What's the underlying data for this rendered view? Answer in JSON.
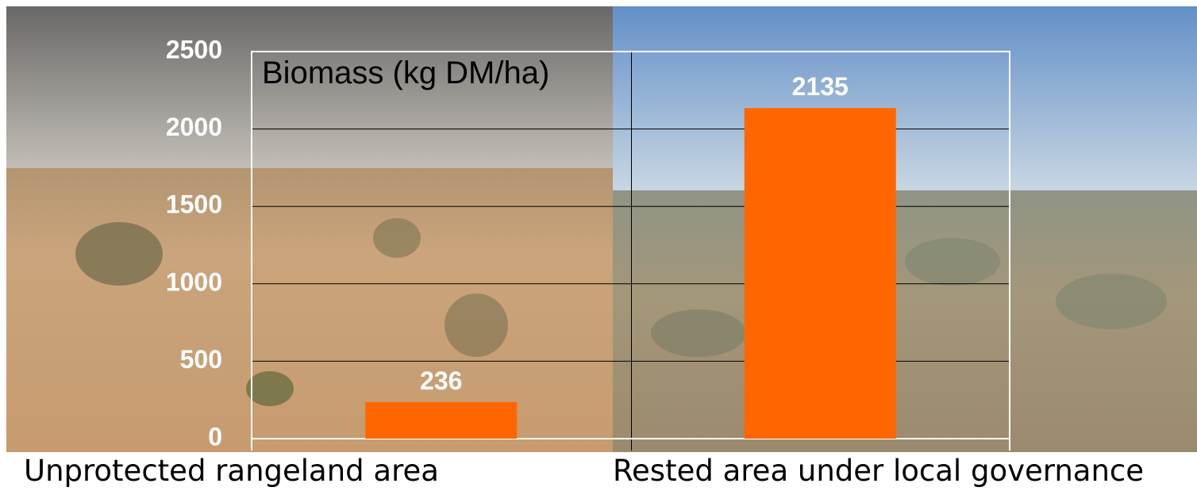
{
  "chart_data": {
    "type": "bar",
    "title": "Biomass (kg DM/ha)",
    "categories": [
      "Unprotected rangeland area",
      "Rested area under local governance"
    ],
    "values": [
      236,
      2135
    ],
    "color": "#ff6600",
    "ylim": [
      0,
      2500
    ],
    "yticks": [
      0,
      500,
      1000,
      1500,
      2000,
      2500
    ],
    "grid": true
  }
}
